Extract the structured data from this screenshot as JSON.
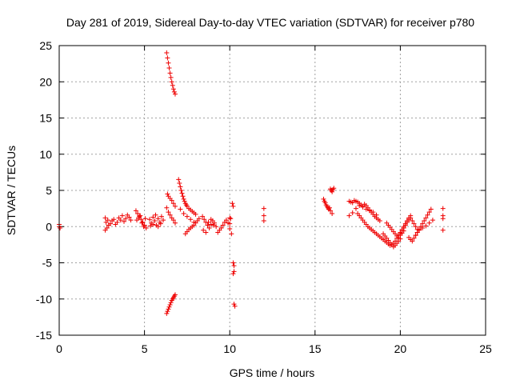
{
  "chart_data": {
    "type": "scatter",
    "title": "Day 281 of 2019, Sidereal Day-to-day VTEC variation (SDTVAR) for receiver p780",
    "xlabel": "GPS time / hours",
    "ylabel": "SDTVAR / TECUs",
    "xlim": [
      0,
      25
    ],
    "ylim": [
      -15,
      25
    ],
    "xticks": [
      0,
      5,
      10,
      15,
      20,
      25
    ],
    "yticks": [
      -15,
      -10,
      -5,
      0,
      5,
      10,
      15,
      20,
      25
    ],
    "grid": true,
    "marker": "plus",
    "color": "#ee0000",
    "series": [
      {
        "name": "SDTVAR",
        "x": [
          0.0,
          0.0,
          0.05,
          2.7,
          2.7,
          2.75,
          2.8,
          2.85,
          2.9,
          3.0,
          3.1,
          3.2,
          3.3,
          3.4,
          3.5,
          3.6,
          3.7,
          3.8,
          3.9,
          4.0,
          4.1,
          4.2,
          4.5,
          4.6,
          4.7,
          4.8,
          4.9,
          5.0,
          5.1,
          4.55,
          4.65,
          4.75,
          4.85,
          4.95,
          5.05,
          5.3,
          5.4,
          5.5,
          5.6,
          5.7,
          5.8,
          5.9,
          6.0,
          6.1,
          5.35,
          5.5,
          5.65,
          5.8,
          5.95,
          6.3,
          6.35,
          6.4,
          6.45,
          6.5,
          6.55,
          6.6,
          6.65,
          6.7,
          6.75,
          6.8,
          6.3,
          6.35,
          6.4,
          6.45,
          6.5,
          6.55,
          6.6,
          6.65,
          6.7,
          6.75,
          6.8,
          6.35,
          6.4,
          6.5,
          6.6,
          6.7,
          6.8,
          6.3,
          6.4,
          6.5,
          6.6,
          6.7,
          6.8,
          7.0,
          7.05,
          7.1,
          7.15,
          7.2,
          7.25,
          7.3,
          7.35,
          7.4,
          7.45,
          7.5,
          7.6,
          7.7,
          7.8,
          7.9,
          8.0,
          7.1,
          7.3,
          7.5,
          7.7,
          7.9,
          7.4,
          7.5,
          7.6,
          7.7,
          7.8,
          7.9,
          8.0,
          8.1,
          8.2,
          8.4,
          8.5,
          8.6,
          8.7,
          8.8,
          8.9,
          9.0,
          9.1,
          9.2,
          8.45,
          8.6,
          8.75,
          8.9,
          9.05,
          9.3,
          9.4,
          9.5,
          9.6,
          9.7,
          9.8,
          9.9,
          10.0,
          10.0,
          10.1,
          10.0,
          10.05,
          10.15,
          10.2,
          10.2,
          10.25,
          10.25,
          10.2,
          10.25,
          10.3,
          12.0,
          12.0,
          12.0,
          15.5,
          15.55,
          15.6,
          15.65,
          15.7,
          15.75,
          15.8,
          15.85,
          15.9,
          16.0,
          15.9,
          15.95,
          16.0,
          16.05,
          16.1,
          17.0,
          17.1,
          17.2,
          17.3,
          17.4,
          17.5,
          17.6,
          17.7,
          17.8,
          17.9,
          18.0,
          18.1,
          18.2,
          18.3,
          18.4,
          18.5,
          18.6,
          18.7,
          18.8,
          17.0,
          17.2,
          17.4,
          17.6,
          17.8,
          18.0,
          18.2,
          18.4,
          18.6,
          17.5,
          17.6,
          17.7,
          17.8,
          17.9,
          18.0,
          18.1,
          18.2,
          18.3,
          18.4,
          18.5,
          18.6,
          18.7,
          18.8,
          18.9,
          19.0,
          19.1,
          19.2,
          19.3,
          19.4,
          19.5,
          19.6,
          19.7,
          19.8,
          19.9,
          20.0,
          20.1,
          20.2,
          20.3,
          20.4,
          20.5,
          20.6,
          19.2,
          19.3,
          19.4,
          19.5,
          19.6,
          19.7,
          19.8,
          19.9,
          20.0,
          20.1,
          20.2,
          19.0,
          19.1,
          19.2,
          19.3,
          19.4,
          19.5,
          19.6,
          19.7,
          19.8,
          19.9,
          20.0,
          20.0,
          20.1,
          20.2,
          20.3,
          20.4,
          20.5,
          20.6,
          20.7,
          20.8,
          20.9,
          21.0,
          20.5,
          20.6,
          20.7,
          20.8,
          20.9,
          21.0,
          21.1,
          20.9,
          21.0,
          21.1,
          21.2,
          21.3,
          21.4,
          21.5,
          21.6,
          21.7,
          21.8,
          21.1,
          21.3,
          21.5,
          21.7,
          21.9,
          22.5,
          22.5,
          22.5,
          22.5
        ],
        "y": [
          0.3,
          0.0,
          -0.2,
          1.2,
          -0.5,
          0.6,
          -0.2,
          0.9,
          0.2,
          0.4,
          0.8,
          1.0,
          0.3,
          0.6,
          1.2,
          0.9,
          1.5,
          0.7,
          1.1,
          1.6,
          1.3,
          0.9,
          2.2,
          1.8,
          1.4,
          1.0,
          0.6,
          0.2,
          -0.2,
          0.9,
          1.2,
          1.5,
          0.5,
          0.0,
          1.1,
          1.0,
          0.5,
          1.3,
          0.8,
          0.2,
          1.1,
          0.6,
          1.4,
          0.9,
          0.1,
          0.3,
          1.6,
          0.0,
          0.4,
          24.0,
          23.3,
          22.6,
          21.9,
          21.2,
          20.6,
          20.0,
          19.5,
          19.0,
          18.6,
          18.3,
          -12.0,
          -11.7,
          -11.4,
          -11.1,
          -10.8,
          -10.5,
          -10.2,
          -10.0,
          -9.8,
          -9.6,
          -9.4,
          4.5,
          4.2,
          3.9,
          3.6,
          3.2,
          2.8,
          2.6,
          2.0,
          1.6,
          1.2,
          0.9,
          0.5,
          6.5,
          6.0,
          5.5,
          5.0,
          4.6,
          4.2,
          3.8,
          3.5,
          3.2,
          3.0,
          2.8,
          2.5,
          2.3,
          2.1,
          1.9,
          1.7,
          2.4,
          1.8,
          1.4,
          1.0,
          0.6,
          -1.0,
          -0.7,
          -0.4,
          -0.2,
          0.0,
          0.2,
          0.5,
          0.8,
          1.1,
          1.4,
          1.0,
          0.6,
          0.2,
          -0.2,
          0.3,
          0.8,
          0.5,
          0.0,
          -0.5,
          -0.8,
          0.6,
          1.0,
          0.2,
          -0.8,
          -0.5,
          -0.2,
          0.2,
          0.6,
          0.9,
          0.5,
          1.2,
          -0.3,
          -1.0,
          0.4,
          1.1,
          3.2,
          2.8,
          -5.0,
          -5.4,
          -6.2,
          -6.5,
          -10.7,
          -11.0,
          2.5,
          1.5,
          0.8,
          3.8,
          3.5,
          3.3,
          3.0,
          2.8,
          2.6,
          2.4,
          2.6,
          2.2,
          1.8,
          5.2,
          5.0,
          4.8,
          5.1,
          5.3,
          3.5,
          3.4,
          3.3,
          3.6,
          3.5,
          3.4,
          3.2,
          3.0,
          2.8,
          3.1,
          2.9,
          2.6,
          2.3,
          2.0,
          1.7,
          1.4,
          1.2,
          1.0,
          0.8,
          1.5,
          1.9,
          2.5,
          2.9,
          2.7,
          2.4,
          2.2,
          2.0,
          1.6,
          1.8,
          1.5,
          1.2,
          0.9,
          0.6,
          0.3,
          0.0,
          -0.2,
          -0.4,
          -0.6,
          -0.8,
          -1.0,
          -1.2,
          -1.4,
          -1.6,
          -1.8,
          -2.0,
          -2.2,
          -2.4,
          -2.6,
          -2.5,
          -2.3,
          -2.0,
          -1.6,
          -1.2,
          -0.8,
          -0.4,
          0.0,
          0.4,
          0.8,
          1.2,
          1.5,
          0.5,
          0.2,
          -0.1,
          -0.4,
          -0.7,
          -1.0,
          -1.3,
          -1.5,
          -1.2,
          -0.9,
          -0.6,
          -1.0,
          -1.3,
          -1.6,
          -1.9,
          -2.2,
          -2.5,
          -2.8,
          -2.6,
          -2.3,
          -2.0,
          -1.7,
          -1.0,
          -0.6,
          -0.2,
          0.2,
          0.6,
          1.0,
          1.2,
          0.8,
          0.4,
          0.0,
          -0.4,
          -1.5,
          -1.8,
          -2.0,
          -1.6,
          -1.2,
          -0.8,
          -0.4,
          -1.2,
          -0.8,
          -0.4,
          0.0,
          0.4,
          0.8,
          1.2,
          1.6,
          2.0,
          2.4,
          -0.5,
          -0.2,
          0.1,
          0.5,
          0.9,
          2.5,
          1.5,
          1.1,
          -0.5
        ]
      }
    ]
  }
}
